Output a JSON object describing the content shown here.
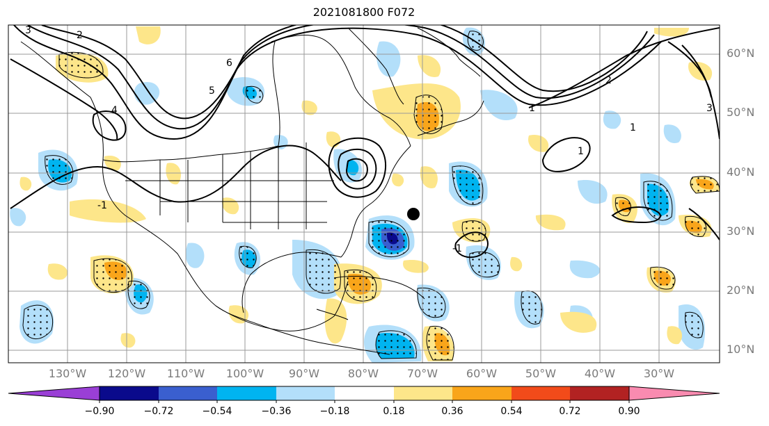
{
  "title": "2021081800 F072",
  "lat_labels": [
    "60°N",
    "50°N",
    "40°N",
    "30°N",
    "20°N",
    "10°N"
  ],
  "lon_labels": [
    "130°W",
    "120°W",
    "110°W",
    "100°W",
    "90°W",
    "80°W",
    "70°W",
    "60°W",
    "50°W",
    "40°W",
    "30°W"
  ],
  "contour_labels": [
    "3",
    "2",
    "4",
    "5",
    "6",
    "-1",
    "1",
    "2",
    "-1",
    "1",
    "1",
    "3"
  ],
  "colorbar": {
    "tick_labels": [
      "−0.90",
      "−0.72",
      "−0.54",
      "−0.36",
      "−0.18",
      "0.18",
      "0.36",
      "0.54",
      "0.72",
      "0.90"
    ],
    "colors": [
      "#9a3fd6",
      "#0a0a8c",
      "#3a5fcf",
      "#00b4f0",
      "#b3dffa",
      "#ffffff",
      "#fde68a",
      "#f9a51a",
      "#f24b1a",
      "#b22222",
      "#f98bb0"
    ]
  },
  "colors": {
    "negative_light": "#b3dffa",
    "negative_mid": "#00b4f0",
    "negative_strong": "#3a5fcf",
    "negative_max": "#0a0a8c",
    "positive_light": "#fde68a",
    "positive_mid": "#f9a51a",
    "coastline": "#000000",
    "grid": "#999999"
  },
  "marker": {
    "name": "storm-center-marker",
    "lon": "72°W",
    "lat": "33°N"
  }
}
